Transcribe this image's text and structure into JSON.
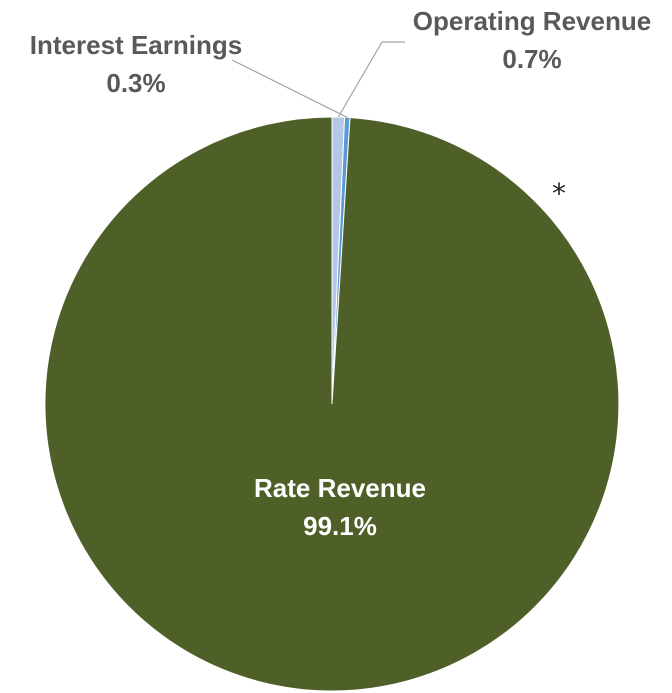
{
  "chart_data": {
    "type": "pie",
    "title": "",
    "slices": [
      {
        "label": "Operating Revenue",
        "value": 0.7,
        "value_label": "0.7%",
        "color": "#b4c7e7"
      },
      {
        "label": "Interest Earnings",
        "value": 0.3,
        "value_label": "0.3%",
        "color": "#5b9bd5"
      },
      {
        "label": "Rate Revenue",
        "value": 99.1,
        "value_label": "99.1%",
        "color": "#4e5f27"
      }
    ],
    "start_angle": "12 o'clock, clockwise",
    "legend": "none",
    "annotation": "*"
  }
}
